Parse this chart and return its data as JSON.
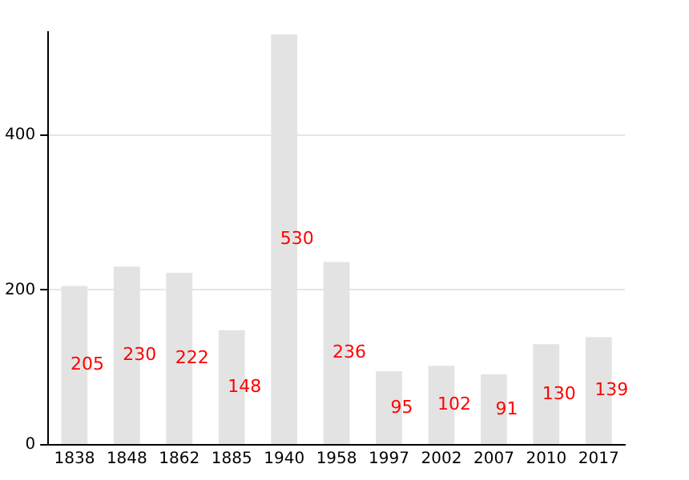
{
  "chart_data": {
    "type": "bar",
    "categories": [
      "1838",
      "1848",
      "1862",
      "1885",
      "1940",
      "1958",
      "1997",
      "2002",
      "2007",
      "2010",
      "2017"
    ],
    "values": [
      205,
      230,
      222,
      148,
      530,
      236,
      95,
      102,
      91,
      130,
      139
    ],
    "color": "#e3e3e3",
    "ylim": [
      0,
      533
    ],
    "yticks": [
      0,
      200,
      400
    ],
    "grid": "y",
    "data_labels": true,
    "legend": false
  }
}
